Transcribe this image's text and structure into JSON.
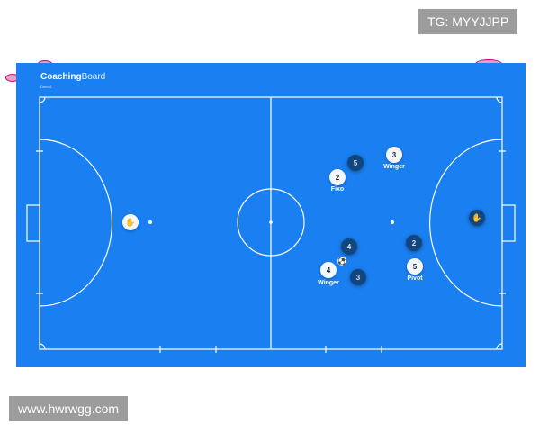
{
  "app": {
    "brand_bold": "Coaching",
    "brand_light": "Board",
    "subtitle": "Demo1"
  },
  "watermarks": {
    "top": "TG: MYYJJPP",
    "bottom": "www.hwrwgg.com"
  },
  "colors": {
    "field": "#1a7ff0",
    "team_white": "#f4f6fa",
    "team_dark": "#12467e"
  },
  "players": [
    {
      "num": "2",
      "team": "white",
      "label": "Fixo"
    },
    {
      "num": "3",
      "team": "white",
      "label": "Winger"
    },
    {
      "num": "4",
      "team": "white",
      "label": "Winger"
    },
    {
      "num": "5",
      "team": "white",
      "label": "Pivot"
    },
    {
      "num": "5",
      "team": "dark",
      "label": ""
    },
    {
      "num": "4",
      "team": "dark",
      "label": ""
    },
    {
      "num": "2",
      "team": "dark",
      "label": ""
    },
    {
      "num": "3",
      "team": "dark",
      "label": ""
    }
  ],
  "goalkeepers": [
    {
      "team": "white",
      "icon": "glove-icon"
    },
    {
      "team": "dark",
      "icon": "glove-icon"
    }
  ],
  "ball": {
    "icon": "soccer-ball-icon"
  }
}
